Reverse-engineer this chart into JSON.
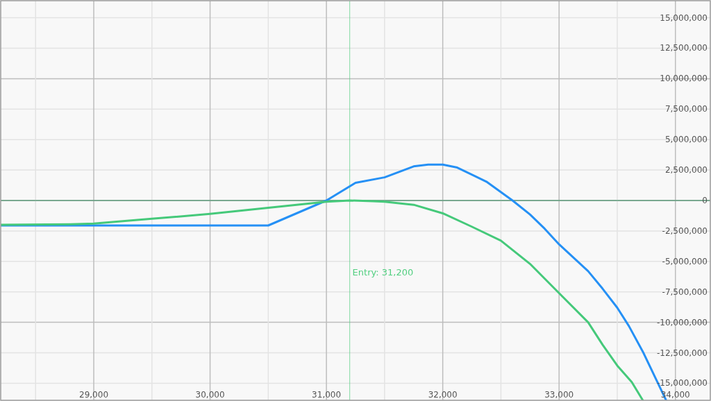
{
  "chart_data": {
    "type": "line",
    "xlim": [
      28200,
      34300
    ],
    "xticks": [
      {
        "value": 28500,
        "label": null
      },
      {
        "value": 29000,
        "label": "29,000"
      },
      {
        "value": 29500,
        "label": null
      },
      {
        "value": 30000,
        "label": "30,000"
      },
      {
        "value": 30500,
        "label": null
      },
      {
        "value": 31000,
        "label": "31,000"
      },
      {
        "value": 31500,
        "label": null
      },
      {
        "value": 32000,
        "label": "32,000"
      },
      {
        "value": 32500,
        "label": null
      },
      {
        "value": 33000,
        "label": "33,000"
      },
      {
        "value": 33500,
        "label": null
      },
      {
        "value": 34000,
        "label": "34,000"
      }
    ],
    "ylim": [
      -16400000,
      16400000
    ],
    "yticks": [
      {
        "value": -15000000,
        "label": "-15,000,000"
      },
      {
        "value": -12500000,
        "label": "-12,500,000"
      },
      {
        "value": -10000000,
        "label": "-10,000,000"
      },
      {
        "value": -7500000,
        "label": "-7,500,000"
      },
      {
        "value": -5000000,
        "label": "-5,000,000"
      },
      {
        "value": -2500000,
        "label": "-2,500,000"
      },
      {
        "value": 0,
        "label": "0"
      },
      {
        "value": 2500000,
        "label": "2,500,000"
      },
      {
        "value": 5000000,
        "label": "5,000,000"
      },
      {
        "value": 7500000,
        "label": "7,500,000"
      },
      {
        "value": 10000000,
        "label": "10,000,000"
      },
      {
        "value": 12500000,
        "label": "12,500,000"
      },
      {
        "value": 15000000,
        "label": "15,000,000"
      }
    ],
    "grid": true,
    "ref_lines": [
      {
        "axis": "y",
        "value": 0,
        "color": "#5e9c7c"
      },
      {
        "axis": "x",
        "value": 31200,
        "label": "Entry: 31,200",
        "color": "#52cf80"
      }
    ],
    "series": [
      {
        "color": "#2590f5",
        "x": [
          28200,
          30500,
          31000,
          31250,
          31500,
          31750,
          31875,
          32000,
          32125,
          32375,
          32600,
          32750,
          32875,
          33000,
          33250,
          33375,
          33500,
          33600,
          33725,
          33850,
          33920
        ],
        "values": [
          -2050000,
          -2050000,
          0,
          1450000,
          1900000,
          2800000,
          2950000,
          2950000,
          2700000,
          1550000,
          0,
          -1150000,
          -2300000,
          -3600000,
          -5800000,
          -7250000,
          -8800000,
          -10300000,
          -12500000,
          -15000000,
          -16400000
        ]
      },
      {
        "color": "#45c97a",
        "x": [
          28200,
          28800,
          29000,
          29500,
          30000,
          30500,
          31000,
          31200,
          31400,
          31500,
          31750,
          32000,
          32250,
          32500,
          32750,
          33000,
          33250,
          33375,
          33500,
          33625,
          33720
        ],
        "values": [
          -2000000,
          -1950000,
          -1900000,
          -1500000,
          -1100000,
          -600000,
          -100000,
          0,
          -50000,
          -100000,
          -350000,
          -1050000,
          -2150000,
          -3300000,
          -5200000,
          -7600000,
          -10000000,
          -11850000,
          -13550000,
          -14900000,
          -16400000
        ]
      }
    ]
  }
}
